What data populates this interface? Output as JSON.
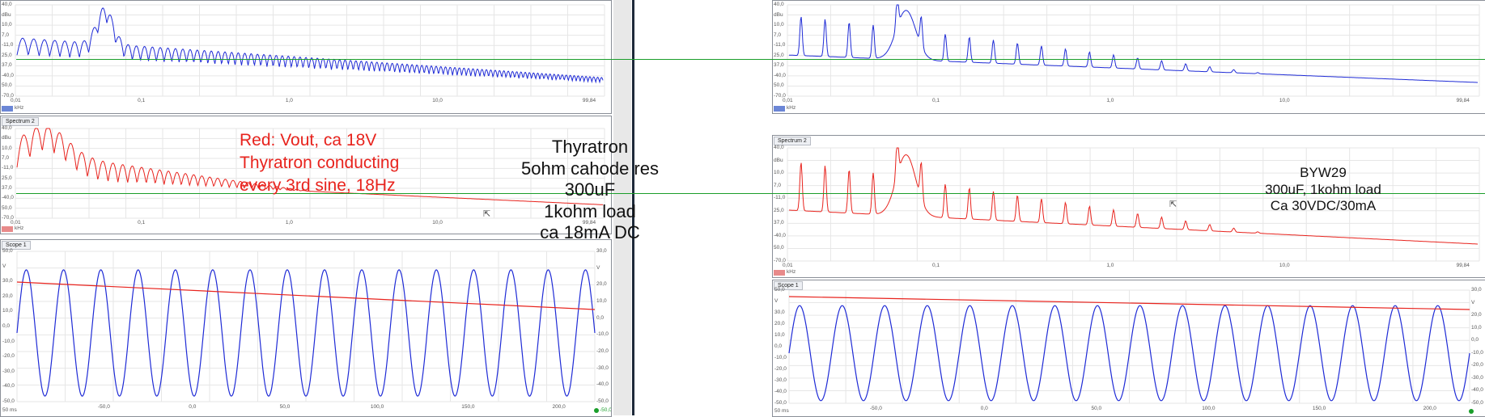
{
  "colors": {
    "blue": "#1f2bd6",
    "red": "#e8231d",
    "green": "#1a9e2a",
    "grid": "#e6e6e6"
  },
  "spectrum1": {
    "yticks": [
      "40,0",
      "dBu",
      "10,0",
      "7,0",
      "-11,0",
      "25,0",
      "37,0",
      "-40,0",
      "50,0",
      "-70,0"
    ],
    "xticks": [
      "0,01",
      "0,1",
      "1,0",
      "10,0",
      "99,84"
    ],
    "unit": "kHz"
  },
  "spectrum2": {
    "title": "Spectrum 2",
    "yticks": [
      "40,0",
      "dBu",
      "10,0",
      "7,0",
      "-11,0",
      "25,0",
      "37,0",
      "-40,0",
      "50,0",
      "-70,0"
    ],
    "xticks": [
      "0,01",
      "0,1",
      "1,0",
      "10,0",
      "99,84"
    ],
    "unit": "kHz"
  },
  "scope": {
    "title": "Scope 1",
    "yticks_left": [
      "50,0",
      "V",
      "30,0",
      "20,0",
      "10,0",
      "0,0",
      "-10,0",
      "-20,0",
      "-30,0",
      "-40,0",
      "-50,0"
    ],
    "yticks_right": [
      "30,0",
      "V",
      "20,0",
      "10,0",
      "0,0",
      "-10,0",
      "-20,0",
      "-30,0",
      "-40,0",
      "-50,0"
    ],
    "xticks": [
      "-50,0",
      "0,0",
      "50,0",
      "100,0",
      "150,0",
      "200,0"
    ],
    "left_unit": "50 ms",
    "right_marker": "-50,0"
  },
  "annotations": {
    "left_red": [
      "Red: Vout, ca 18V",
      "Thyratron conducting",
      "every 3rd sine, 18Hz"
    ],
    "left_black": [
      "Thyratron",
      "5ohm cahode res",
      "300uF",
      "1kohm load",
      "ca 18mA DC"
    ],
    "right_black": [
      "BYW29",
      "300uF, 1kohm load",
      "Ca 30VDC/30mA"
    ]
  }
}
